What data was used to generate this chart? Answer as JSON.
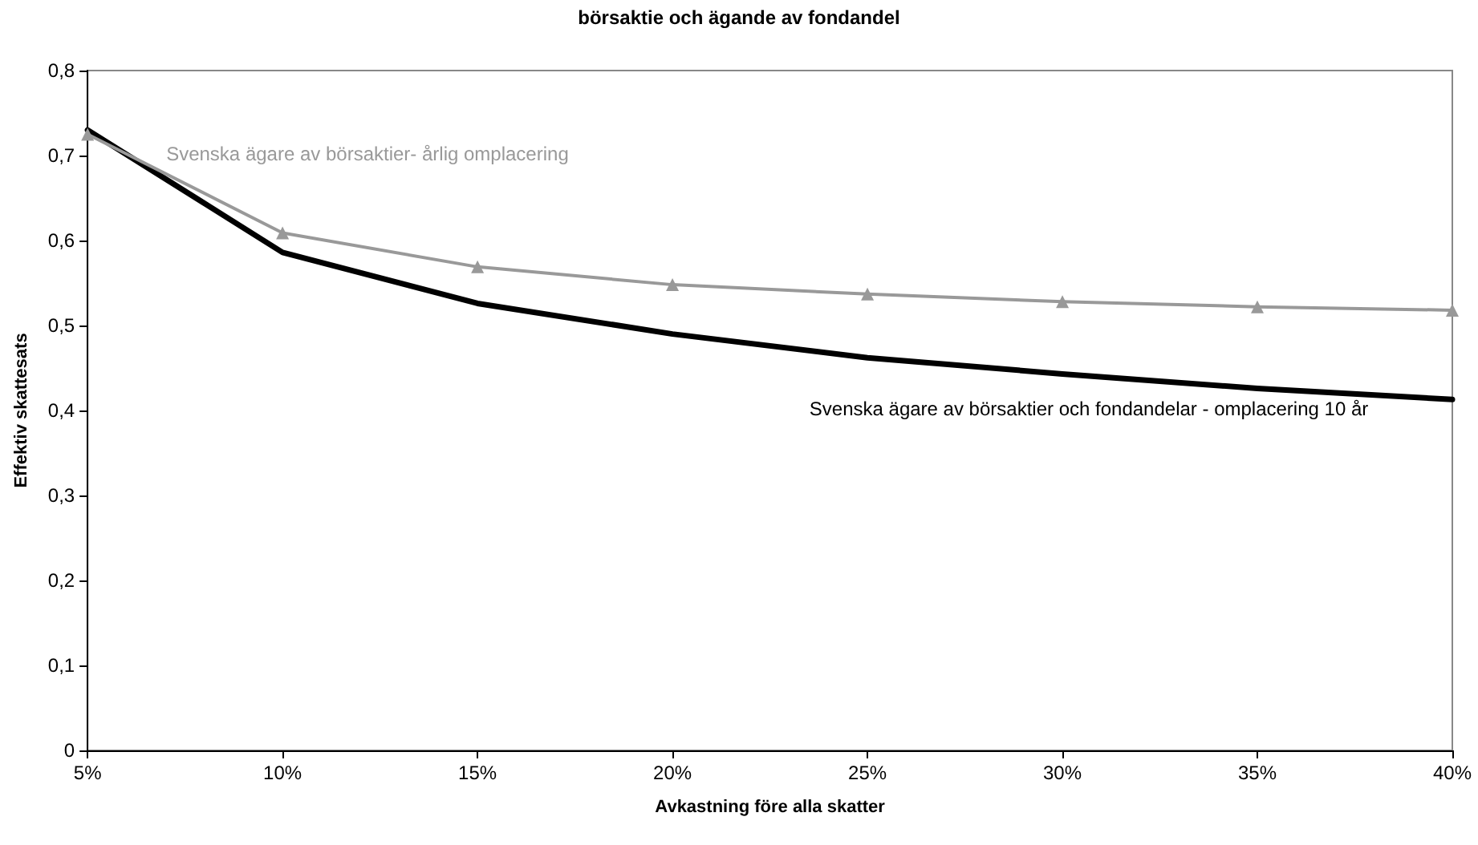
{
  "chart_data": {
    "type": "line",
    "title": "börsaktie och ägande av fondandel",
    "xlabel": "Avkastning före alla skatter",
    "ylabel": "Effektiv skattesats",
    "categories": [
      "5%",
      "10%",
      "15%",
      "20%",
      "25%",
      "30%",
      "35%",
      "40%"
    ],
    "series": [
      {
        "name": "Svenska ägare av börsaktier- årlig omplacering",
        "color": "#999999",
        "marker": "triangle",
        "values": [
          0.725,
          0.609,
          0.569,
          0.548,
          0.537,
          0.528,
          0.522,
          0.518
        ]
      },
      {
        "name": "Svenska ägare av börsaktier och fondandelar - omplacering 10 år",
        "color": "#000000",
        "marker": "none",
        "values": [
          0.73,
          0.586,
          0.526,
          0.49,
          0.462,
          0.443,
          0.426,
          0.413
        ]
      }
    ],
    "ylim": [
      0,
      0.8
    ],
    "yticks": [
      0,
      {
        "value": 0.1,
        "label": "0,1"
      },
      {
        "value": 0.2,
        "label": "0,2"
      },
      {
        "value": 0.3,
        "label": "0,3"
      },
      {
        "value": 0.4,
        "label": "0,4"
      },
      {
        "value": 0.5,
        "label": "0,5"
      },
      {
        "value": 0.6,
        "label": "0,6"
      },
      {
        "value": 0.7,
        "label": "0,7"
      },
      {
        "value": 0.8,
        "label": "0,8"
      }
    ],
    "grid": false,
    "legend": false
  }
}
